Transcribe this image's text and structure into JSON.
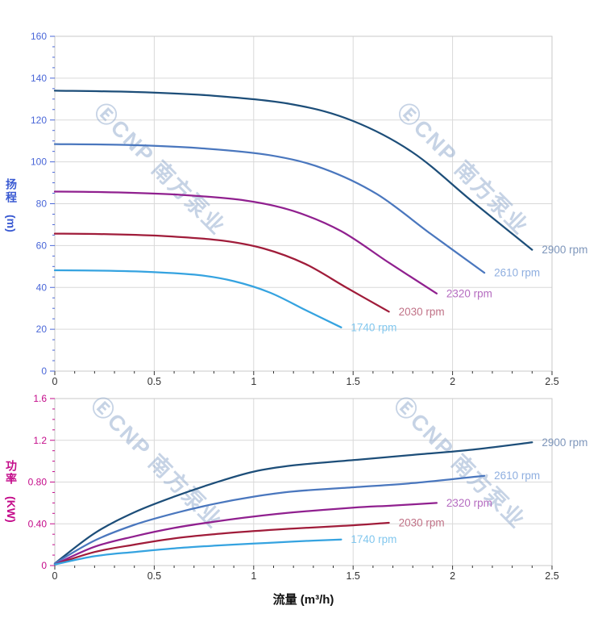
{
  "watermark": {
    "text": "ⒺCNP 南方泵业",
    "color": "#8fa8cc"
  },
  "axes": {
    "x_title": "流量 (m³/h)",
    "x_tick_color": "#333333",
    "x_title_color": "#111111",
    "grid_color": "#d9d9d9",
    "border_color": "#c9c9c9"
  },
  "chart_data": [
    {
      "type": "line",
      "name": "head-vs-flow",
      "title": "",
      "ylabel": "扬程",
      "ylabel_unit": "(m)",
      "xlabel": "流量 (m³/h)",
      "axis_color": "#4a67d8",
      "xlim": [
        0,
        2.5
      ],
      "ylim": [
        0,
        160
      ],
      "x_major": 0.5,
      "x_minor": 0.1,
      "y_major": 20,
      "y_minor": 5,
      "grid": true,
      "legend_position": "end-of-line",
      "x_tick_labels": [
        "0",
        "0.5",
        "1",
        "1.5",
        "2",
        "2.5"
      ],
      "y_tick_labels": [
        "0",
        "20",
        "40",
        "60",
        "80",
        "100",
        "120",
        "140",
        "160"
      ],
      "series": [
        {
          "name": "2900 rpm",
          "color": "#1d4e79",
          "label_color": "#7e96bb",
          "points": [
            [
              0,
              134
            ],
            [
              0.4,
              133.4
            ],
            [
              0.8,
              131.6
            ],
            [
              1.2,
              127.4
            ],
            [
              1.5,
              119.5
            ],
            [
              1.8,
              104.5
            ],
            [
              2.1,
              81
            ],
            [
              2.4,
              58
            ]
          ]
        },
        {
          "name": "2610 rpm",
          "color": "#4a77be",
          "label_color": "#8fafe0",
          "points": [
            [
              0,
              108.5
            ],
            [
              0.36,
              108.1
            ],
            [
              0.72,
              106.6
            ],
            [
              1.08,
              103.2
            ],
            [
              1.35,
              96.8
            ],
            [
              1.62,
              84.6
            ],
            [
              1.89,
              65.6
            ],
            [
              2.16,
              47
            ]
          ]
        },
        {
          "name": "2320 rpm",
          "color": "#90208f",
          "label_color": "#b56cc0",
          "points": [
            [
              0,
              85.8
            ],
            [
              0.32,
              85.4
            ],
            [
              0.64,
              84.2
            ],
            [
              0.96,
              81.5
            ],
            [
              1.2,
              76.5
            ],
            [
              1.44,
              66.9
            ],
            [
              1.68,
              51.8
            ],
            [
              1.92,
              37.1
            ]
          ]
        },
        {
          "name": "2030 rpm",
          "color": "#a01c3a",
          "label_color": "#c07287",
          "points": [
            [
              0,
              65.7
            ],
            [
              0.28,
              65.4
            ],
            [
              0.56,
              64.5
            ],
            [
              0.84,
              62.4
            ],
            [
              1.05,
              58.6
            ],
            [
              1.26,
              51.2
            ],
            [
              1.47,
              39.7
            ],
            [
              1.68,
              28.4
            ]
          ]
        },
        {
          "name": "1740 rpm",
          "color": "#35a3e0",
          "label_color": "#82c7ee",
          "points": [
            [
              0,
              48.2
            ],
            [
              0.24,
              48
            ],
            [
              0.48,
              47.4
            ],
            [
              0.72,
              45.9
            ],
            [
              0.9,
              43
            ],
            [
              1.08,
              37.6
            ],
            [
              1.26,
              29.2
            ],
            [
              1.44,
              20.9
            ]
          ]
        }
      ]
    },
    {
      "type": "line",
      "name": "power-vs-flow",
      "title": "",
      "ylabel": "功率",
      "ylabel_unit": "(KW)",
      "xlabel": "流量 (m³/h)",
      "axis_color": "#c40b8a",
      "xlim": [
        0,
        2.5
      ],
      "ylim": [
        0,
        1.6
      ],
      "x_major": 0.5,
      "x_minor": 0.1,
      "y_major": 0.4,
      "y_minor": 0.1,
      "grid": true,
      "legend_position": "end-of-line",
      "x_tick_labels": [
        "0",
        "0.5",
        "1",
        "1.5",
        "2",
        "2.5"
      ],
      "y_tick_labels": [
        "0",
        "0.40",
        "0.80",
        "1.2",
        "1.6"
      ],
      "series": [
        {
          "name": "2900 rpm",
          "color": "#1d4e79",
          "label_color": "#7e96bb",
          "points": [
            [
              0,
              0.02
            ],
            [
              0.2,
              0.31
            ],
            [
              0.4,
              0.51
            ],
            [
              0.6,
              0.66
            ],
            [
              0.8,
              0.79
            ],
            [
              1,
              0.9
            ],
            [
              1.2,
              0.96
            ],
            [
              1.5,
              1.01
            ],
            [
              1.8,
              1.06
            ],
            [
              2.1,
              1.11
            ],
            [
              2.4,
              1.18
            ]
          ]
        },
        {
          "name": "2610 rpm",
          "color": "#4a77be",
          "label_color": "#8fafe0",
          "points": [
            [
              0,
              0.02
            ],
            [
              0.2,
              0.24
            ],
            [
              0.4,
              0.39
            ],
            [
              0.6,
              0.5
            ],
            [
              0.8,
              0.59
            ],
            [
              1,
              0.66
            ],
            [
              1.2,
              0.71
            ],
            [
              1.5,
              0.75
            ],
            [
              1.8,
              0.79
            ],
            [
              2.16,
              0.86
            ]
          ]
        },
        {
          "name": "2320 rpm",
          "color": "#90208f",
          "label_color": "#b56cc0",
          "points": [
            [
              0,
              0.01
            ],
            [
              0.2,
              0.18
            ],
            [
              0.4,
              0.28
            ],
            [
              0.6,
              0.36
            ],
            [
              0.8,
              0.42
            ],
            [
              1,
              0.47
            ],
            [
              1.2,
              0.51
            ],
            [
              1.5,
              0.555
            ],
            [
              1.7,
              0.575
            ],
            [
              1.92,
              0.6
            ]
          ]
        },
        {
          "name": "2030 rpm",
          "color": "#a01c3a",
          "label_color": "#c07287",
          "points": [
            [
              0,
              0.01
            ],
            [
              0.2,
              0.13
            ],
            [
              0.4,
              0.2
            ],
            [
              0.6,
              0.26
            ],
            [
              0.8,
              0.3
            ],
            [
              1,
              0.33
            ],
            [
              1.2,
              0.355
            ],
            [
              1.45,
              0.38
            ],
            [
              1.68,
              0.41
            ]
          ]
        },
        {
          "name": "1740 rpm",
          "color": "#35a3e0",
          "label_color": "#82c7ee",
          "points": [
            [
              0,
              0.01
            ],
            [
              0.2,
              0.09
            ],
            [
              0.4,
              0.13
            ],
            [
              0.6,
              0.165
            ],
            [
              0.8,
              0.19
            ],
            [
              1,
              0.21
            ],
            [
              1.2,
              0.23
            ],
            [
              1.44,
              0.25
            ]
          ]
        }
      ]
    }
  ]
}
